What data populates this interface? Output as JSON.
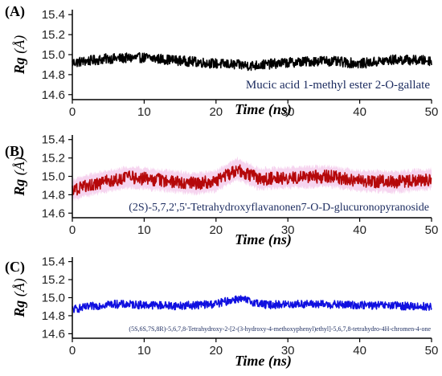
{
  "chart_data": [
    {
      "type": "line",
      "panel_label": "(A)",
      "series": [
        {
          "name": "Mucic acid 1-methyl ester 2-O-gallate",
          "color": "#000000",
          "mean": 14.93,
          "noise": 0.05,
          "trend": [
            [
              0,
              14.92
            ],
            [
              5,
              14.96
            ],
            [
              10,
              14.97
            ],
            [
              15,
              14.94
            ],
            [
              20,
              14.91
            ],
            [
              25,
              14.89
            ],
            [
              30,
              14.92
            ],
            [
              35,
              14.94
            ],
            [
              40,
              14.91
            ],
            [
              45,
              14.95
            ],
            [
              50,
              14.94
            ]
          ]
        }
      ],
      "x": {
        "label": "Time (ns)",
        "range": [
          0,
          50
        ],
        "ticks": [
          0,
          10,
          20,
          30,
          40,
          50
        ]
      },
      "y": {
        "label": "Rg (Å)",
        "range": [
          14.55,
          15.45
        ],
        "ticks": [
          14.6,
          14.8,
          15.0,
          15.2,
          15.4
        ]
      }
    },
    {
      "type": "line",
      "panel_label": "(B)",
      "series": [
        {
          "name": "(2S)-5,7,2',5'-Tetrahydroxyflavanonen7-O-D-glucuronopyranoside",
          "color": "#b5080a",
          "mean": 14.95,
          "noise": 0.07,
          "trend": [
            [
              0,
              14.85
            ],
            [
              3,
              14.92
            ],
            [
              8,
              14.99
            ],
            [
              12,
              14.96
            ],
            [
              17,
              14.92
            ],
            [
              20,
              14.95
            ],
            [
              23,
              15.08
            ],
            [
              26,
              14.97
            ],
            [
              31,
              14.99
            ],
            [
              36,
              15.0
            ],
            [
              40,
              14.95
            ],
            [
              45,
              14.94
            ],
            [
              50,
              14.97
            ]
          ]
        }
      ],
      "band_color": "#f3c6ea",
      "x": {
        "label": "Time (ns)",
        "range": [
          0,
          50
        ],
        "ticks": [
          0,
          10,
          20,
          30,
          40,
          50
        ]
      },
      "y": {
        "label": "Rg (Å)",
        "range": [
          14.55,
          15.45
        ],
        "ticks": [
          14.6,
          14.8,
          15.0,
          15.2,
          15.4
        ]
      }
    },
    {
      "type": "line",
      "panel_label": "(C)",
      "series": [
        {
          "name": "(5S,6S,7S,8R)-5,6,7,8-Tetrahydroxy-2-[2-(3-hydroxy-4-methoxyphenyl)ethyl]-5,6,7,8-tetrahydro-4H-chromen-4-one",
          "color": "#1010e0",
          "mean": 14.91,
          "noise": 0.045,
          "trend": [
            [
              0,
              14.87
            ],
            [
              5,
              14.93
            ],
            [
              10,
              14.92
            ],
            [
              15,
              14.91
            ],
            [
              20,
              14.93
            ],
            [
              23,
              14.99
            ],
            [
              27,
              14.92
            ],
            [
              32,
              14.93
            ],
            [
              38,
              14.92
            ],
            [
              45,
              14.91
            ],
            [
              50,
              14.9
            ]
          ]
        }
      ],
      "x": {
        "label": "Time (ns)",
        "range": [
          0,
          50
        ],
        "ticks": [
          0,
          10,
          20,
          30,
          40,
          50
        ]
      },
      "y": {
        "label": "Rg (Å)",
        "range": [
          14.55,
          15.45
        ],
        "ticks": [
          14.6,
          14.8,
          15.0,
          15.2,
          15.4
        ]
      }
    }
  ]
}
